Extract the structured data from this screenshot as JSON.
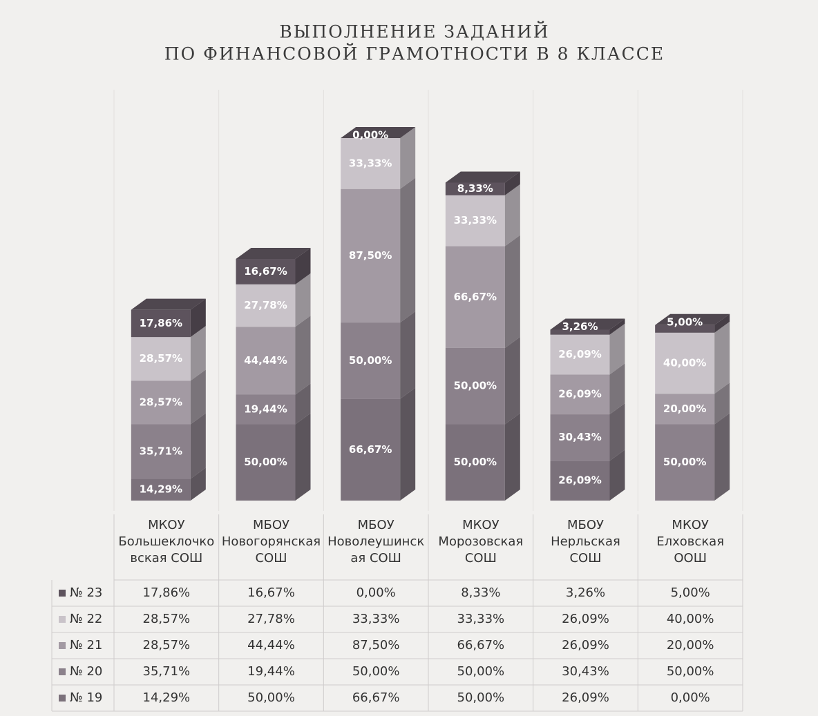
{
  "chart_data": {
    "type": "stacked-bar-3d",
    "title": [
      "ВЫПОЛНЕНИЕ ЗАДАНИЙ",
      "ПО ФИНАНСОВОЙ ГРАМОТНОСТИ В 8 КЛАССЕ"
    ],
    "categories": [
      "МКОУ Большеклочковская СОШ",
      "МБОУ Новогорянская СОШ",
      "МБОУ Новолеушинская СОШ",
      "МКОУ Морозовская СОШ",
      "МБОУ Нерльская СОШ",
      "МКОУ Елховская ООШ"
    ],
    "series": [
      {
        "name": "№ 19",
        "color": "#7b717b",
        "values": [
          14.29,
          50.0,
          66.67,
          50.0,
          26.09,
          0.0
        ],
        "value_labels": [
          "14,29%",
          "50,00%",
          "66,67%",
          "50,00%",
          "26,09%",
          "0,00%"
        ]
      },
      {
        "name": "№ 20",
        "color": "#8b818b",
        "values": [
          35.71,
          19.44,
          50.0,
          50.0,
          30.43,
          50.0
        ],
        "value_labels": [
          "35,71%",
          "19,44%",
          "50,00%",
          "50,00%",
          "30,43%",
          "50,00%"
        ]
      },
      {
        "name": "№ 21",
        "color": "#a39aa3",
        "values": [
          28.57,
          44.44,
          87.5,
          66.67,
          26.09,
          20.0
        ],
        "value_labels": [
          "28,57%",
          "44,44%",
          "87,50%",
          "66,67%",
          "26,09%",
          "20,00%"
        ]
      },
      {
        "name": "№ 22",
        "color": "#c9c3c9",
        "values": [
          28.57,
          27.78,
          33.33,
          33.33,
          26.09,
          40.0
        ],
        "value_labels": [
          "28,57%",
          "27,78%",
          "33,33%",
          "33,33%",
          "26,09%",
          "40,00%"
        ]
      },
      {
        "name": "№ 23",
        "color": "#5d535d",
        "values": [
          17.86,
          16.67,
          0.0,
          8.33,
          3.26,
          5.0
        ],
        "value_labels": [
          "17,86%",
          "16,67%",
          "0,00%",
          "8,33%",
          "3,26%",
          "5,00%"
        ]
      }
    ]
  }
}
